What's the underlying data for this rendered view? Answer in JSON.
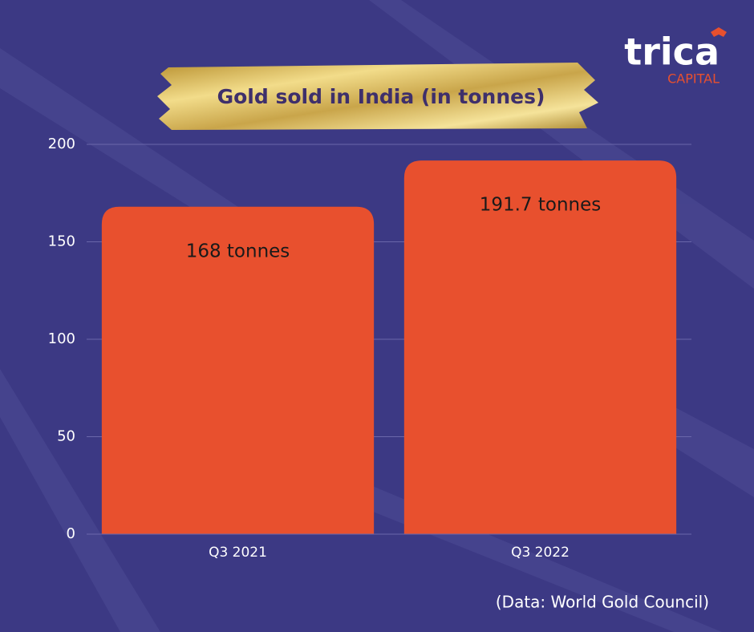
{
  "chart_data": {
    "type": "bar",
    "title": "Gold sold in India (in tonnes)",
    "categories": [
      "Q3 2021",
      "Q3 2022"
    ],
    "values": [
      168,
      191.7
    ],
    "value_labels": [
      "168 tonnes",
      "191.7 tonnes"
    ],
    "color": "#e8502e",
    "ylim": [
      0,
      200
    ],
    "yticks": [
      0,
      50,
      100,
      150,
      200
    ],
    "grid": true,
    "source": "(Data: World Gold Council)"
  },
  "logo": {
    "name": "trica",
    "subtitle": "CAPITAL"
  }
}
